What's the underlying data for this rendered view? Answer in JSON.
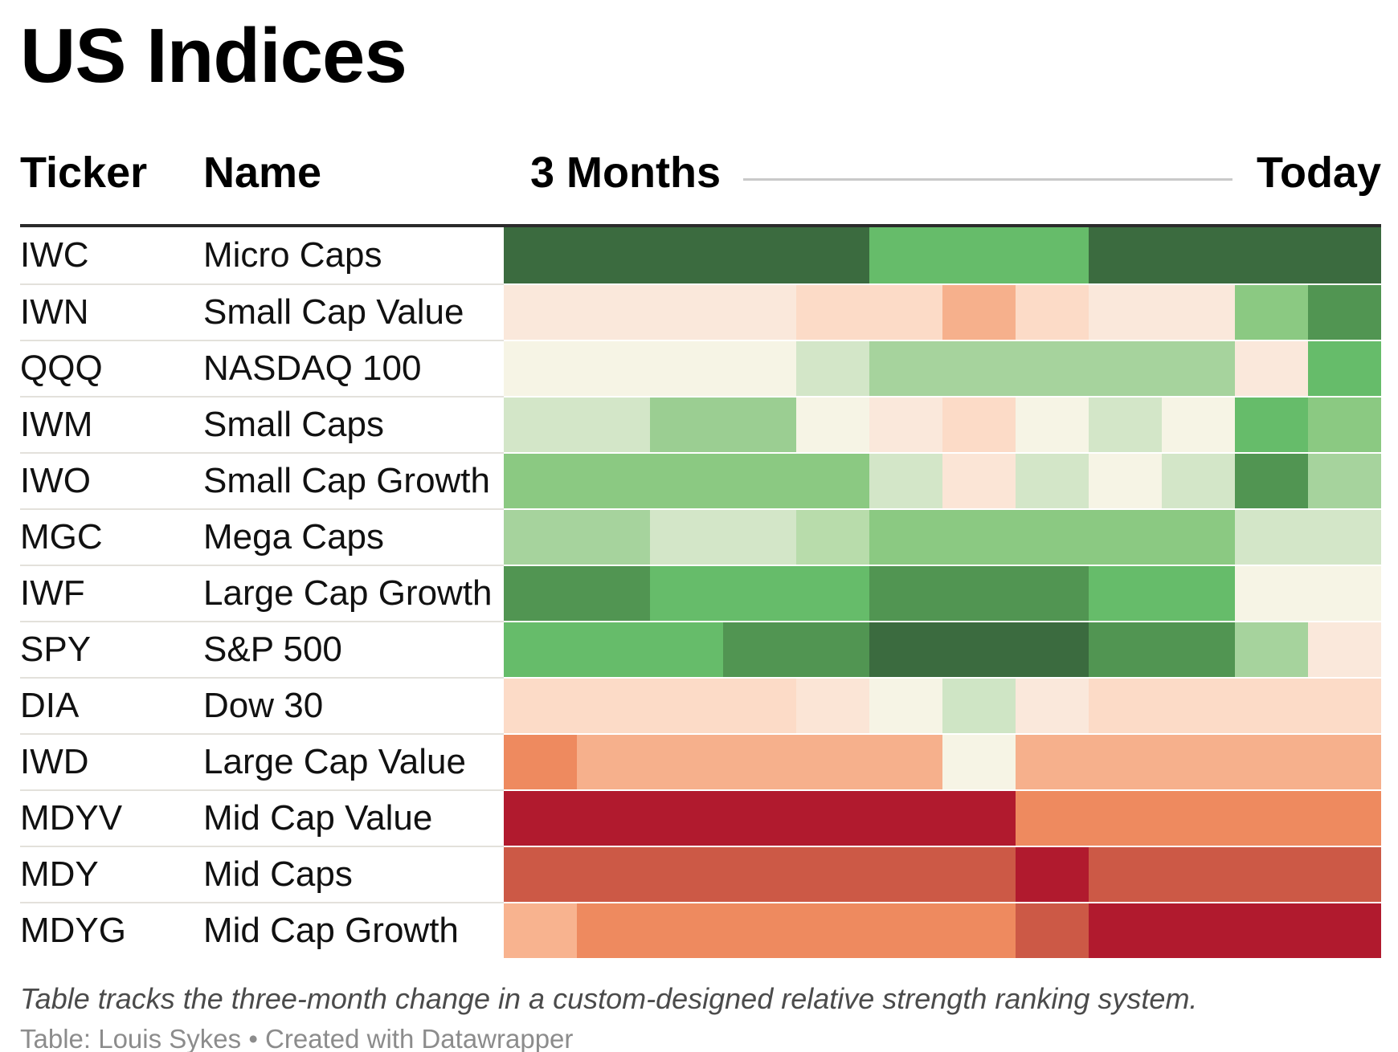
{
  "title": "US Indices",
  "table": {
    "columns": {
      "ticker": "Ticker",
      "name": "Name",
      "timeline_start": "3 Months",
      "timeline_end": "Today"
    }
  },
  "footnote": "Table tracks the three-month change in a custom-designed relative strength ranking system.",
  "credit": "Table: Louis Sykes • Created with Datawrapper",
  "chart_data": {
    "type": "heatmap",
    "title": "US Indices",
    "x_axis": {
      "description": "time, from three months ago to today",
      "start_label": "3 Months",
      "end_label": "Today",
      "columns": 12
    },
    "value_encoding": "cell color encodes a custom relative-strength rank: dark green = strongest, bright green = strong, pale green = mildly strong, cream = neutral, pale pink/salmon = weak, dark red = weakest; no numeric values are printed",
    "values_shown": false,
    "palette": {
      "dark_green": "#3b6b3f",
      "darkmed_green": "#519552",
      "bright_green": "#66bc6a",
      "med_green": "#8bc982",
      "medlight_green": "#a6d39d",
      "pale_green": "#d3e6c8",
      "cream": "#f6f4e5",
      "palest_pink": "#fae8db",
      "light_pink": "#fcdbc7",
      "salmon": "#f6b08c",
      "orange": "#ee8a5f",
      "med_red": "#cc5946",
      "dark_red": "#b11a2e"
    },
    "rows": [
      {
        "ticker": "IWC",
        "name": "Micro Caps",
        "colors": [
          "#3b6b3f",
          "#3b6b3f",
          "#3b6b3f",
          "#3b6b3f",
          "#3b6b3f",
          "#66bc6a",
          "#66bc6a",
          "#66bc6a",
          "#3b6b3f",
          "#3b6b3f",
          "#3b6b3f",
          "#3b6b3f"
        ]
      },
      {
        "ticker": "IWN",
        "name": "Small Cap Value",
        "colors": [
          "#fae8db",
          "#fae8db",
          "#fae8db",
          "#fae8db",
          "#fcdbc7",
          "#fcdbc7",
          "#f6b08c",
          "#fcdbc7",
          "#fae8db",
          "#fae8db",
          "#8bc982",
          "#519552"
        ]
      },
      {
        "ticker": "QQQ",
        "name": "NASDAQ 100",
        "colors": [
          "#f6f4e5",
          "#f6f4e5",
          "#f6f4e5",
          "#f6f4e5",
          "#d3e6c8",
          "#a6d39d",
          "#a6d39d",
          "#a6d39d",
          "#a6d39d",
          "#a6d39d",
          "#fae8db",
          "#66bc6a"
        ]
      },
      {
        "ticker": "IWM",
        "name": "Small Caps",
        "colors": [
          "#d3e6c8",
          "#d3e6c8",
          "#9bce92",
          "#9bce92",
          "#f6f4e5",
          "#fae8db",
          "#fcdbc7",
          "#f6f4e5",
          "#d3e6c8",
          "#f6f4e5",
          "#66bc6a",
          "#8bc982"
        ]
      },
      {
        "ticker": "IWO",
        "name": "Small Cap Growth",
        "colors": [
          "#8bc982",
          "#8bc982",
          "#8bc982",
          "#8bc982",
          "#8bc982",
          "#d3e6c8",
          "#fbe5d6",
          "#d3e6c8",
          "#f6f4e5",
          "#d3e6c8",
          "#519552",
          "#a6d39d"
        ]
      },
      {
        "ticker": "MGC",
        "name": "Mega Caps",
        "colors": [
          "#a6d39d",
          "#a6d39d",
          "#d3e6c8",
          "#d3e6c8",
          "#b8dcab",
          "#8bc982",
          "#8bc982",
          "#8bc982",
          "#8bc982",
          "#8bc982",
          "#d3e6c8",
          "#d3e6c8"
        ]
      },
      {
        "ticker": "IWF",
        "name": "Large Cap Growth",
        "colors": [
          "#519552",
          "#519552",
          "#66bc6a",
          "#66bc6a",
          "#66bc6a",
          "#519552",
          "#519552",
          "#519552",
          "#66bc6a",
          "#66bc6a",
          "#f6f4e5",
          "#f6f4e5"
        ]
      },
      {
        "ticker": "SPY",
        "name": "S&P 500",
        "colors": [
          "#66bc6a",
          "#66bc6a",
          "#66bc6a",
          "#519552",
          "#519552",
          "#3b6b3f",
          "#3b6b3f",
          "#3b6b3f",
          "#519552",
          "#519552",
          "#a6d39d",
          "#fae8db"
        ]
      },
      {
        "ticker": "DIA",
        "name": "Dow 30",
        "colors": [
          "#fcdbc7",
          "#fcdbc7",
          "#fcdbc7",
          "#fcdbc7",
          "#fbe5d6",
          "#f6f4e5",
          "#cfe5c5",
          "#fae8db",
          "#fcdbc7",
          "#fcdbc7",
          "#fcdbc7",
          "#fcdbc7"
        ]
      },
      {
        "ticker": "IWD",
        "name": "Large Cap Value",
        "colors": [
          "#ee8a5f",
          "#f6b08c",
          "#f6b08c",
          "#f6b08c",
          "#f6b08c",
          "#f6b08c",
          "#f6f4e5",
          "#f6b08c",
          "#f6b08c",
          "#f6b08c",
          "#f6b08c",
          "#f6b08c"
        ]
      },
      {
        "ticker": "MDYV",
        "name": "Mid Cap Value",
        "colors": [
          "#b11a2e",
          "#b11a2e",
          "#b11a2e",
          "#b11a2e",
          "#b11a2e",
          "#b11a2e",
          "#b11a2e",
          "#ee8a5f",
          "#ee8a5f",
          "#ee8a5f",
          "#ee8a5f",
          "#ee8a5f"
        ]
      },
      {
        "ticker": "MDY",
        "name": "Mid Caps",
        "colors": [
          "#cc5946",
          "#cc5946",
          "#cc5946",
          "#cc5946",
          "#cc5946",
          "#cc5946",
          "#cc5946",
          "#b11a2e",
          "#cc5946",
          "#cc5946",
          "#cc5946",
          "#cc5946"
        ]
      },
      {
        "ticker": "MDYG",
        "name": "Mid Cap Growth",
        "colors": [
          "#f8b38f",
          "#ee8a5f",
          "#ee8a5f",
          "#ee8a5f",
          "#ee8a5f",
          "#ee8a5f",
          "#ee8a5f",
          "#cc5946",
          "#b11a2e",
          "#b11a2e",
          "#b11a2e",
          "#b11a2e"
        ]
      }
    ]
  }
}
